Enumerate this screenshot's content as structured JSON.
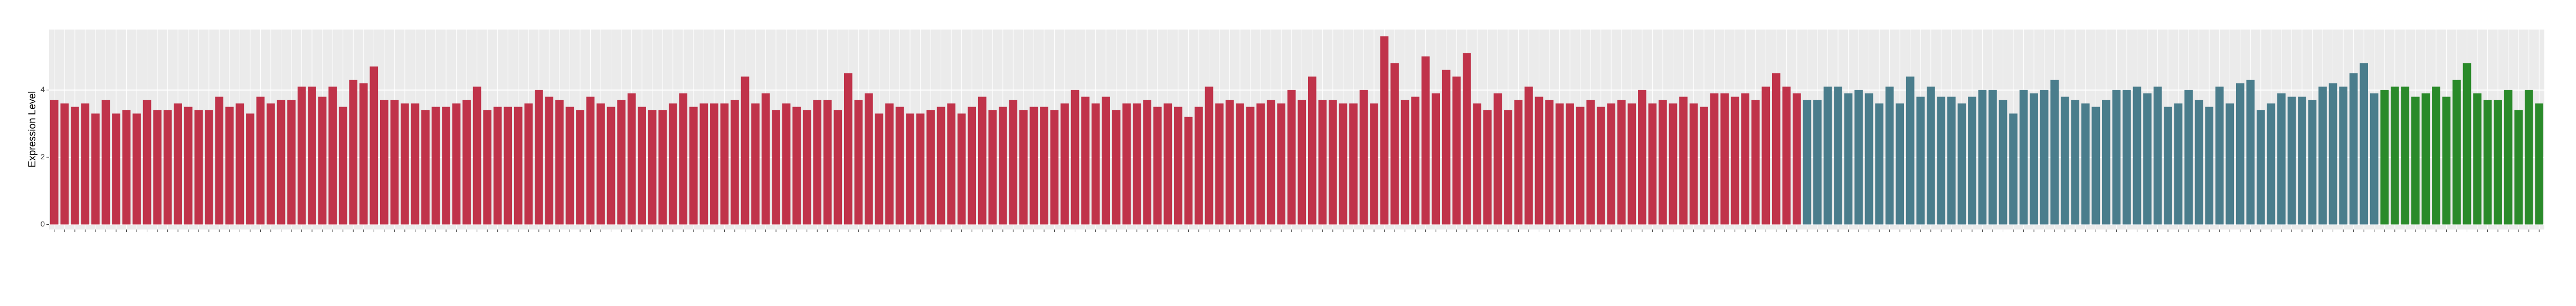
{
  "chart_data": {
    "type": "bar",
    "y_label": "Expression Level",
    "ylim": [
      -0.15,
      5.8
    ],
    "yticks": [
      0,
      2,
      4
    ],
    "grid": true,
    "series": [
      {
        "color": "#c0334a",
        "categories": [
          null,
          null,
          null,
          null,
          null,
          null,
          null,
          null,
          null,
          null,
          null,
          null,
          null,
          null,
          null,
          null,
          null,
          null,
          null,
          null,
          null,
          null,
          null,
          null,
          null,
          null,
          null,
          null,
          null,
          null,
          null,
          null,
          null,
          null,
          null,
          null,
          null,
          null,
          null,
          null,
          null,
          null,
          null,
          null,
          null,
          null,
          null,
          null,
          null,
          null,
          null,
          null,
          null,
          null,
          null,
          null,
          null,
          null,
          null,
          null,
          null,
          null,
          null,
          null,
          null,
          null,
          null,
          null,
          null,
          null,
          null,
          null,
          null,
          null,
          null,
          null,
          null,
          null,
          null,
          null,
          null,
          null,
          null,
          null,
          null,
          null,
          null,
          null,
          null,
          null,
          null,
          null,
          null,
          null,
          null,
          null,
          null,
          null,
          null,
          null,
          null,
          null,
          null,
          null,
          null,
          null,
          null,
          null,
          null,
          null,
          null,
          null,
          null,
          null,
          null,
          null,
          null,
          null,
          null,
          null,
          null,
          null,
          null,
          null,
          null,
          null,
          null,
          null,
          null,
          null,
          null,
          null,
          null,
          null,
          null,
          null,
          null,
          null,
          null,
          null,
          null,
          null,
          null,
          null,
          null,
          null,
          null,
          null,
          null,
          null,
          null,
          null,
          null,
          null,
          null,
          null,
          null,
          null,
          null,
          null,
          null,
          null,
          null,
          null,
          null,
          null,
          null,
          null,
          null,
          null
        ],
        "values": [
          3.7,
          3.6,
          3.5,
          3.6,
          3.3,
          3.7,
          3.3,
          3.4,
          3.3,
          3.7,
          3.4,
          3.4,
          3.6,
          3.5,
          3.4,
          3.4,
          3.8,
          3.5,
          3.6,
          3.3,
          3.8,
          3.6,
          3.7,
          3.7,
          4.1,
          4.1,
          3.8,
          4.1,
          3.5,
          4.3,
          4.2,
          4.7,
          3.7,
          3.7,
          3.6,
          3.6,
          3.4,
          3.5,
          3.5,
          3.6,
          3.7,
          4.1,
          3.4,
          3.5,
          3.5,
          3.5,
          3.6,
          4.0,
          3.8,
          3.7,
          3.5,
          3.4,
          3.8,
          3.6,
          3.5,
          3.7,
          3.9,
          3.5,
          3.4,
          3.4,
          3.6,
          3.9,
          3.5,
          3.6,
          3.6,
          3.6,
          3.7,
          4.4,
          3.6,
          3.9,
          3.4,
          3.6,
          3.5,
          3.4,
          3.7,
          3.7,
          3.4,
          4.5,
          3.7,
          3.9,
          3.3,
          3.6,
          3.5,
          3.3,
          3.3,
          3.4,
          3.5,
          3.6,
          3.3,
          3.5,
          3.8,
          3.4,
          3.5,
          3.7,
          3.4,
          3.5,
          3.5,
          3.4,
          3.6,
          4.0,
          3.8,
          3.6,
          3.8,
          3.4,
          3.6,
          3.6,
          3.7,
          3.5,
          3.6,
          3.5,
          3.2,
          3.5,
          4.1,
          3.6,
          3.7,
          3.6,
          3.5,
          3.6,
          3.7,
          3.6,
          4.0,
          3.7,
          4.4,
          3.7,
          3.7,
          3.6,
          3.6,
          4.0,
          3.6,
          5.6,
          4.8,
          3.7,
          3.8,
          5.0,
          3.9,
          4.6,
          4.4,
          5.1,
          3.6,
          3.4,
          3.9,
          3.4,
          3.7,
          4.1,
          3.8,
          3.7,
          3.6,
          3.6,
          3.5,
          3.7,
          3.5,
          3.6,
          3.7,
          3.6,
          4.0,
          3.6,
          3.7,
          3.6,
          3.8,
          3.6,
          3.5,
          3.9,
          3.9,
          3.8,
          3.9,
          3.7,
          4.1,
          4.5,
          4.1,
          3.9
        ]
      },
      {
        "color": "#4a7d8c",
        "categories": [
          null,
          null,
          null,
          null,
          null,
          null,
          null,
          null,
          null,
          null,
          null,
          null,
          null,
          null,
          null,
          null,
          null,
          null,
          null,
          null,
          null,
          null,
          null,
          null,
          null,
          null,
          null,
          null,
          null,
          null,
          null,
          null,
          null,
          null,
          null,
          null,
          null,
          null,
          null,
          null,
          null,
          null,
          null,
          null,
          null,
          null,
          null,
          null,
          null,
          null,
          null,
          null,
          null,
          null,
          null,
          null
        ],
        "values": [
          3.7,
          3.7,
          4.1,
          4.1,
          3.9,
          4.0,
          3.9,
          3.6,
          4.1,
          3.6,
          4.4,
          3.8,
          4.1,
          3.8,
          3.8,
          3.6,
          3.8,
          4.0,
          4.0,
          3.7,
          3.3,
          4.0,
          3.9,
          4.0,
          4.3,
          3.8,
          3.7,
          3.6,
          3.5,
          3.7,
          4.0,
          4.0,
          4.1,
          3.9,
          4.1,
          3.5,
          3.6,
          4.0,
          3.7,
          3.5,
          4.1,
          3.6,
          4.2,
          4.3,
          3.4,
          3.6,
          3.9,
          3.8,
          3.8,
          3.7,
          4.1,
          4.2,
          4.1,
          4.5,
          4.8,
          3.9
        ]
      },
      {
        "color": "#2a8a2a",
        "categories": [
          null,
          null,
          null,
          null,
          null,
          null,
          null,
          null,
          null,
          null,
          null,
          null,
          null,
          null,
          null,
          null
        ],
        "values": [
          4.0,
          4.1,
          4.1,
          3.8,
          3.9,
          4.1,
          3.8,
          4.3,
          4.8,
          3.9,
          3.7,
          3.7,
          4.0,
          3.4,
          4.0,
          3.6
        ]
      }
    ]
  }
}
